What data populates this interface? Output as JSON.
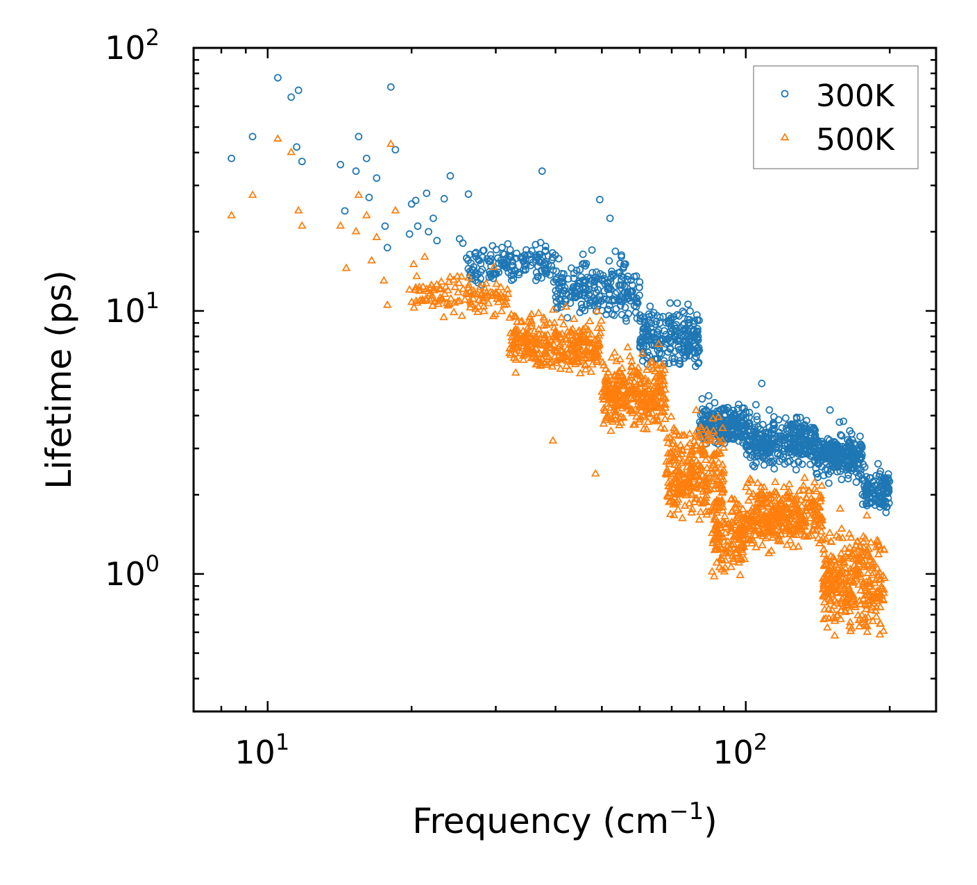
{
  "chart_data": {
    "type": "scatter",
    "title": "",
    "xlabel": "Frequency (cm",
    "xlabel_sup": "−1",
    "xlabel_end": ")",
    "ylabel": "Lifetime (ps)",
    "xscale": "log",
    "yscale": "log",
    "xlim": [
      7,
      250
    ],
    "ylim": [
      0.3,
      100
    ],
    "x_ticks": [
      {
        "value": 10,
        "base": "10",
        "exp": "1"
      },
      {
        "value": 100,
        "base": "10",
        "exp": "2"
      }
    ],
    "y_ticks": [
      {
        "value": 1,
        "base": "10",
        "exp": "0"
      },
      {
        "value": 10,
        "base": "10",
        "exp": "1"
      },
      {
        "value": 100,
        "base": "10",
        "exp": "2"
      }
    ],
    "legend_position": "top-right",
    "series": [
      {
        "name": "300K",
        "marker": "circle",
        "color": "#1f77b4",
        "points": [
          [
            8.4,
            38
          ],
          [
            9.3,
            46
          ],
          [
            10.5,
            77
          ],
          [
            11.2,
            65
          ],
          [
            11.6,
            69
          ],
          [
            11.5,
            42
          ],
          [
            11.8,
            37
          ],
          [
            14.2,
            36
          ],
          [
            14.5,
            24
          ],
          [
            15.3,
            34
          ],
          [
            15.5,
            46
          ],
          [
            16.1,
            38
          ],
          [
            16.3,
            27
          ],
          [
            16.9,
            32
          ],
          [
            17.6,
            21
          ],
          [
            17.8,
            17.4
          ],
          [
            18.1,
            71
          ],
          [
            18.5,
            41
          ],
          [
            19.8,
            19.6
          ],
          [
            20.0,
            25.5
          ],
          [
            20.4,
            26.3
          ],
          [
            20.6,
            21
          ],
          [
            21.5,
            28
          ],
          [
            21.7,
            20
          ],
          [
            22.2,
            22.5
          ],
          [
            22.6,
            18.5
          ],
          [
            23.4,
            26.7
          ],
          [
            24.1,
            32.6
          ],
          [
            25.2,
            18.8
          ],
          [
            25.6,
            18.1
          ],
          [
            26.3,
            27.8
          ],
          [
            37.5,
            34
          ],
          [
            49.5,
            26.5
          ],
          [
            52.0,
            22.5
          ],
          [
            105.0,
            4.4
          ],
          [
            108.0,
            5.3
          ],
          [
            112.0,
            4.2
          ],
          [
            150.0,
            4.2
          ],
          [
            165.0,
            3.5
          ]
        ],
        "clusters": [
          {
            "x": [
              26,
              40
            ],
            "y": [
              11,
              21
            ],
            "n": 150
          },
          {
            "x": [
              40,
              60
            ],
            "y": [
              7.5,
              20
            ],
            "n": 230
          },
          {
            "x": [
              60,
              80
            ],
            "y": [
              4.8,
              13
            ],
            "n": 230
          },
          {
            "x": [
              80,
              100
            ],
            "y": [
              2.7,
              5.2
            ],
            "n": 220
          },
          {
            "x": [
              100,
              140
            ],
            "y": [
              2.2,
              4.8
            ],
            "n": 340
          },
          {
            "x": [
              140,
              175
            ],
            "y": [
              2.0,
              4.0
            ],
            "n": 240
          },
          {
            "x": [
              175,
              200
            ],
            "y": [
              1.5,
              3.0
            ],
            "n": 120
          }
        ]
      },
      {
        "name": "500K",
        "marker": "triangle",
        "color": "#ff7f0e",
        "points": [
          [
            8.4,
            23
          ],
          [
            9.3,
            27.5
          ],
          [
            10.5,
            45
          ],
          [
            11.2,
            40
          ],
          [
            11.6,
            24
          ],
          [
            11.8,
            21
          ],
          [
            14.2,
            21
          ],
          [
            14.6,
            14.5
          ],
          [
            15.3,
            20
          ],
          [
            15.5,
            27.5
          ],
          [
            16.1,
            23
          ],
          [
            16.5,
            15.5
          ],
          [
            16.9,
            19
          ],
          [
            17.5,
            13
          ],
          [
            17.8,
            10.5
          ],
          [
            18.1,
            43
          ],
          [
            18.5,
            24
          ],
          [
            19.8,
            12
          ],
          [
            20.2,
            15
          ],
          [
            20.5,
            13.5
          ],
          [
            21.3,
            16
          ],
          [
            22.0,
            12.5
          ],
          [
            39.5,
            3.2
          ],
          [
            48.5,
            2.4
          ]
        ],
        "clusters": [
          {
            "x": [
              20,
              32
            ],
            "y": [
              8.2,
              16
            ],
            "n": 120
          },
          {
            "x": [
              32,
              50
            ],
            "y": [
              4.8,
              12
            ],
            "n": 320
          },
          {
            "x": [
              50,
              68
            ],
            "y": [
              2.8,
              8.5
            ],
            "n": 320
          },
          {
            "x": [
              68,
              90
            ],
            "y": [
              1.1,
              5.5
            ],
            "n": 300
          },
          {
            "x": [
              85,
              100
            ],
            "y": [
              0.75,
              2.8
            ],
            "n": 160
          },
          {
            "x": [
              100,
              145
            ],
            "y": [
              1.0,
              2.8
            ],
            "n": 360
          },
          {
            "x": [
              145,
              195
            ],
            "y": [
              0.42,
              2.2
            ],
            "n": 340
          }
        ]
      }
    ]
  }
}
